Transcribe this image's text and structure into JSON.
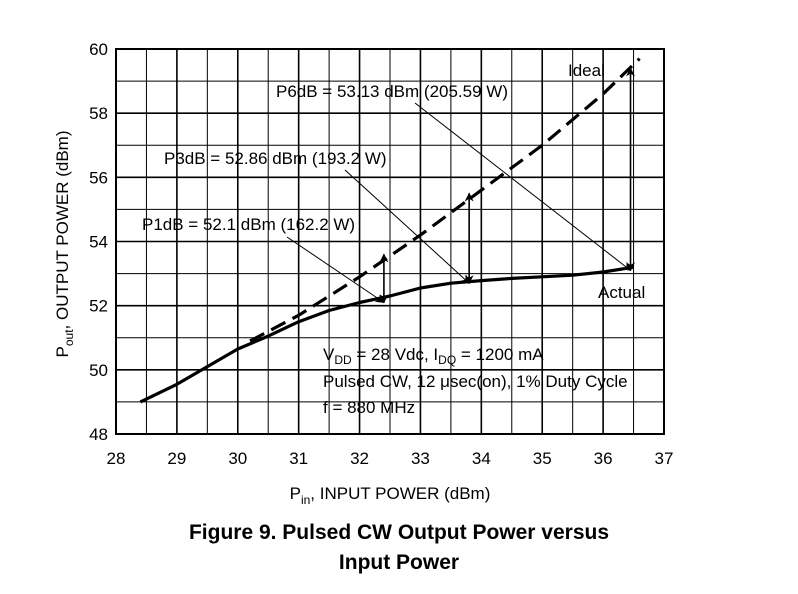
{
  "chart_data": {
    "type": "line",
    "x_axis": {
      "label_main": "P",
      "label_sub": "in",
      "label_rest": ", INPUT POWER (dBm)",
      "range": [
        28,
        37
      ],
      "ticks": [
        "28",
        "29",
        "30",
        "31",
        "32",
        "33",
        "34",
        "35",
        "36",
        "37"
      ]
    },
    "y_axis": {
      "label_main": "P",
      "label_sub": "out",
      "label_rest": ", OUTPUT POWER (dBm)",
      "range": [
        48,
        60
      ],
      "ticks": [
        "48",
        "50",
        "52",
        "54",
        "56",
        "58",
        "60"
      ]
    },
    "grid": true,
    "series": [
      {
        "name": "Actual",
        "style": "solid",
        "x": [
          28.4,
          29.0,
          29.5,
          30.0,
          30.5,
          31.0,
          31.5,
          32.0,
          32.5,
          33.0,
          33.5,
          34.0,
          34.5,
          35.0,
          35.5,
          36.0,
          36.5
        ],
        "y": [
          49.0,
          49.55,
          50.1,
          50.65,
          51.05,
          51.5,
          51.85,
          52.1,
          52.3,
          52.55,
          52.7,
          52.78,
          52.85,
          52.9,
          52.95,
          53.05,
          53.2
        ]
      },
      {
        "name": "Ideal",
        "style": "dashed",
        "x": [
          30.2,
          31.0,
          32.0,
          33.0,
          34.0,
          35.0,
          36.0,
          36.6
        ],
        "y": [
          50.9,
          51.7,
          52.9,
          54.2,
          55.6,
          57.0,
          58.6,
          59.7
        ]
      }
    ],
    "arrows": [
      {
        "x": 32.4,
        "y_low": 52.1,
        "y_high": 53.6
      },
      {
        "x": 33.8,
        "y_low": 52.7,
        "y_high": 55.5
      },
      {
        "x": 36.45,
        "y_low": 53.1,
        "y_high": 59.4
      }
    ],
    "callouts": [
      {
        "id": "p1db",
        "text": "P1dB = 52.1 dBm (162.2 W)",
        "x": 32.4,
        "y": 52.1
      },
      {
        "id": "p3db",
        "text": "P3dB = 52.86 dBm (193.2 W)",
        "x": 33.8,
        "y": 52.7
      },
      {
        "id": "p6db",
        "text": "P6dB = 53.13 dBm (205.59 W)",
        "x": 36.45,
        "y": 53.1
      }
    ],
    "conditions": {
      "line1_a": "V",
      "line1_a_sub": "DD",
      "line1_b": " = 28 Vdc, I",
      "line1_b_sub": "DQ",
      "line1_c": " = 1200 mA",
      "line2": "Pulsed CW, 12 μsec(on), 1% Duty Cycle",
      "line3": "f = 880 MHz"
    }
  },
  "caption": {
    "line1": "Figure 9. Pulsed CW Output Power versus",
    "line2": "Input Power"
  }
}
